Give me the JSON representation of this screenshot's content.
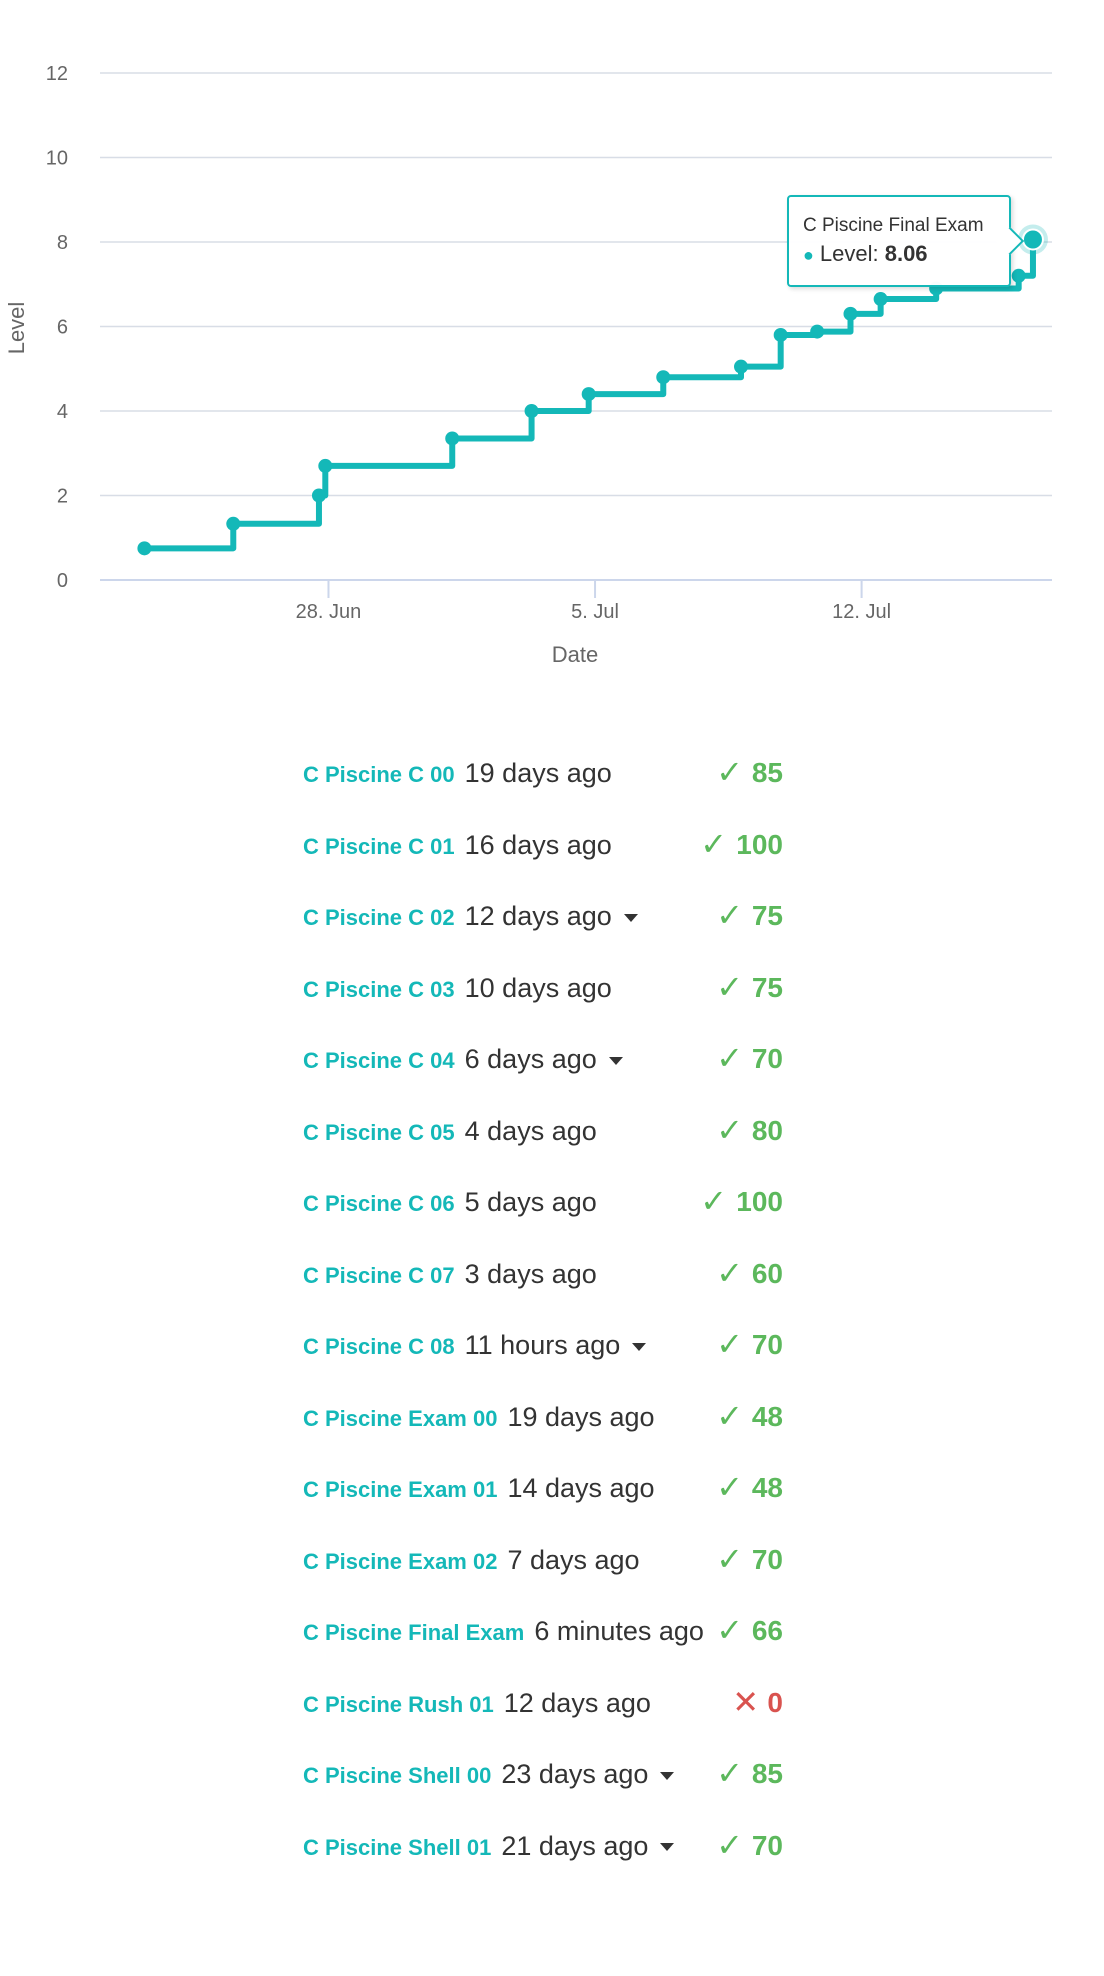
{
  "chart_data": {
    "type": "line",
    "step": true,
    "xlabel": "Date",
    "ylabel": "Level",
    "ylim": [
      0,
      12
    ],
    "yticks": [
      0,
      2,
      4,
      6,
      8,
      10,
      12
    ],
    "xticks": [
      {
        "date": "2024-06-28",
        "label": "28. Jun"
      },
      {
        "date": "2024-07-05",
        "label": "5. Jul"
      },
      {
        "date": "2024-07-12",
        "label": "12. Jul"
      }
    ],
    "grid": true,
    "line_color": "#14b8b8",
    "series": [
      {
        "points": [
          {
            "x": "2024-06-23 04:00",
            "y": 0.75
          },
          {
            "x": "2024-06-25 12:00",
            "y": 1.33
          },
          {
            "x": "2024-06-27 18:00",
            "y": 2.0
          },
          {
            "x": "2024-06-27 22:00",
            "y": 2.7
          },
          {
            "x": "2024-07-01 06:00",
            "y": 3.35
          },
          {
            "x": "2024-07-03 08:00",
            "y": 4.0
          },
          {
            "x": "2024-07-04 20:00",
            "y": 4.4
          },
          {
            "x": "2024-07-06 19:00",
            "y": 4.8
          },
          {
            "x": "2024-07-08 20:00",
            "y": 5.05
          },
          {
            "x": "2024-07-09 21:00",
            "y": 5.8
          },
          {
            "x": "2024-07-10 20:00",
            "y": 5.88
          },
          {
            "x": "2024-07-11 17:00",
            "y": 6.3
          },
          {
            "x": "2024-07-12 12:00",
            "y": 6.65
          },
          {
            "x": "2024-07-13 23:00",
            "y": 6.9
          },
          {
            "x": "2024-07-16 03:00",
            "y": 7.2
          },
          {
            "x": "2024-07-16 12:00",
            "y": 8.06
          }
        ]
      }
    ],
    "tooltip": {
      "title": "C Piscine Final Exam",
      "label": "Level:",
      "value": "8.06"
    }
  },
  "projects": [
    {
      "name": "C Piscine C 00",
      "date": "19 days ago",
      "dropdown": false,
      "status": "pass",
      "score": "85"
    },
    {
      "name": "C Piscine C 01",
      "date": "16 days ago",
      "dropdown": false,
      "status": "pass",
      "score": "100"
    },
    {
      "name": "C Piscine C 02",
      "date": "12 days ago",
      "dropdown": true,
      "status": "pass",
      "score": "75"
    },
    {
      "name": "C Piscine C 03",
      "date": "10 days ago",
      "dropdown": false,
      "status": "pass",
      "score": "75"
    },
    {
      "name": "C Piscine C 04",
      "date": "6 days ago",
      "dropdown": true,
      "status": "pass",
      "score": "70"
    },
    {
      "name": "C Piscine C 05",
      "date": "4 days ago",
      "dropdown": false,
      "status": "pass",
      "score": "80"
    },
    {
      "name": "C Piscine C 06",
      "date": "5 days ago",
      "dropdown": false,
      "status": "pass",
      "score": "100"
    },
    {
      "name": "C Piscine C 07",
      "date": "3 days ago",
      "dropdown": false,
      "status": "pass",
      "score": "60"
    },
    {
      "name": "C Piscine C 08",
      "date": "11 hours ago",
      "dropdown": true,
      "status": "pass",
      "score": "70"
    },
    {
      "name": "C Piscine Exam 00",
      "date": "19 days ago",
      "dropdown": false,
      "status": "pass",
      "score": "48"
    },
    {
      "name": "C Piscine Exam 01",
      "date": "14 days ago",
      "dropdown": false,
      "status": "pass",
      "score": "48"
    },
    {
      "name": "C Piscine Exam 02",
      "date": "7 days ago",
      "dropdown": false,
      "status": "pass",
      "score": "70"
    },
    {
      "name": "C Piscine Final Exam",
      "date": "6 minutes ago",
      "dropdown": false,
      "status": "pass",
      "score": "66"
    },
    {
      "name": "C Piscine Rush 01",
      "date": "12 days ago",
      "dropdown": false,
      "status": "fail",
      "score": "0"
    },
    {
      "name": "C Piscine Shell 00",
      "date": "23 days ago",
      "dropdown": true,
      "status": "pass",
      "score": "85"
    },
    {
      "name": "C Piscine Shell 01",
      "date": "21 days ago",
      "dropdown": true,
      "status": "pass",
      "score": "70"
    }
  ],
  "icons": {
    "pass": "checkmark-icon",
    "fail": "cross-icon"
  },
  "colors": {
    "accent": "#14b8b8",
    "pass": "#5cb85c",
    "fail": "#d9534f",
    "text": "#333333"
  }
}
